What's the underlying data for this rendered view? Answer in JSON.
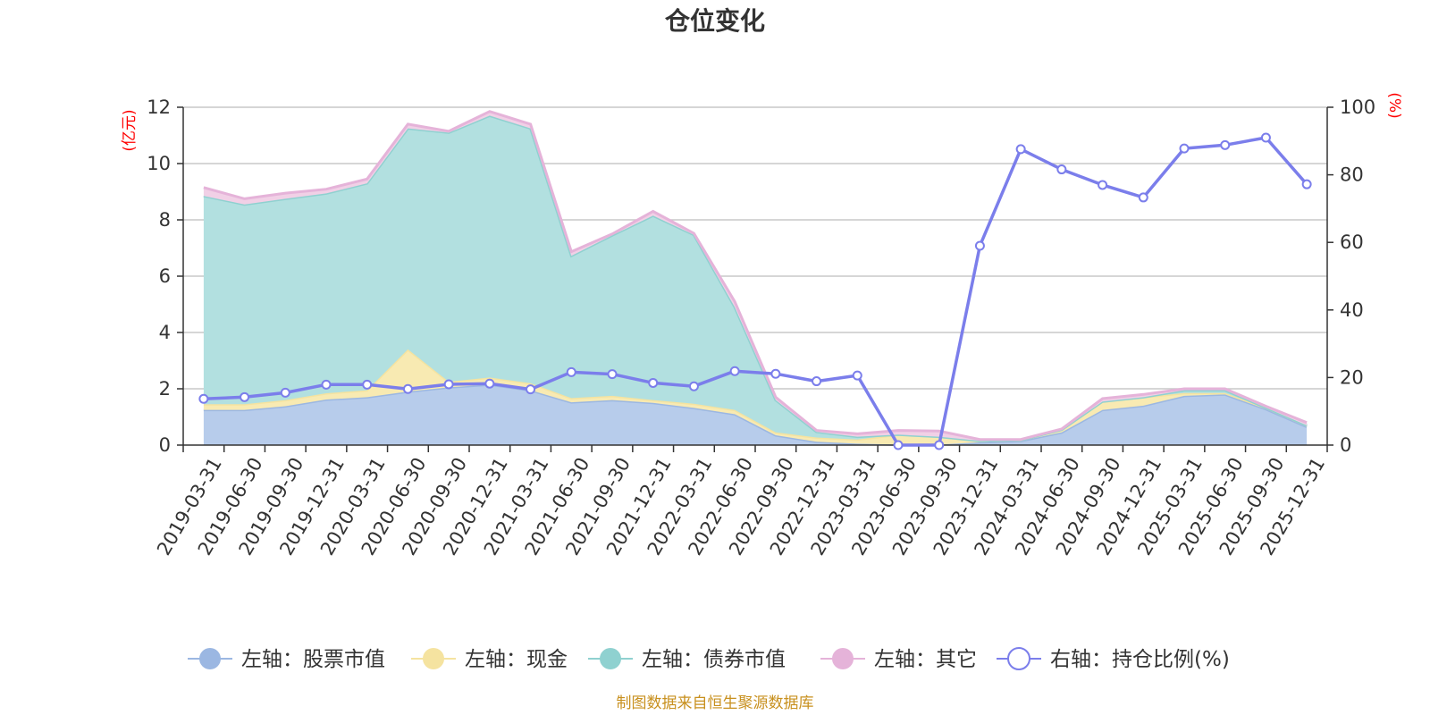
{
  "chart_data": {
    "type": "area",
    "title": "仓位变化",
    "source_note": "制图数据来自恒生聚源数据库",
    "left_axis": {
      "unit": "(亿元)",
      "ylim": [
        0,
        12
      ],
      "ticks": [
        0,
        2,
        4,
        6,
        8,
        10,
        12
      ]
    },
    "right_axis": {
      "unit": "(%)",
      "ylim": [
        0,
        100
      ],
      "ticks": [
        0,
        20,
        40,
        60,
        80,
        100
      ]
    },
    "categories": [
      "2019-03-31",
      "2019-06-30",
      "2019-09-30",
      "2019-12-31",
      "2020-03-31",
      "2020-06-30",
      "2020-09-30",
      "2020-12-31",
      "2021-03-31",
      "2021-06-30",
      "2021-09-30",
      "2021-12-31",
      "2022-03-31",
      "2022-06-30",
      "2022-09-30",
      "2022-12-31",
      "2023-03-31",
      "2023-06-30",
      "2023-09-30",
      "2023-12-31",
      "2024-03-31",
      "2024-06-30",
      "2024-09-30",
      "2024-12-31",
      "2025-03-31",
      "2025-06-30",
      "2025-09-30",
      "2025-12-31"
    ],
    "stacked_series": [
      {
        "name": "左轴：股票市值",
        "color": "#9bb7e2",
        "fill": "#b7cceb",
        "values": [
          1.25,
          1.25,
          1.38,
          1.62,
          1.7,
          1.9,
          2.05,
          2.15,
          1.95,
          1.52,
          1.6,
          1.5,
          1.32,
          1.1,
          0.35,
          0.12,
          0.05,
          0.02,
          0.02,
          0.1,
          0.15,
          0.45,
          1.25,
          1.4,
          1.75,
          1.8,
          1.28,
          0.65
        ]
      },
      {
        "name": "左轴：现金",
        "color": "#f5e3a0",
        "fill": "#f8eab2",
        "values": [
          0.2,
          0.2,
          0.22,
          0.22,
          0.25,
          1.5,
          0.2,
          0.25,
          0.25,
          0.15,
          0.15,
          0.1,
          0.15,
          0.15,
          0.1,
          0.15,
          0.15,
          0.35,
          0.28,
          0.05,
          0.03,
          0.1,
          0.3,
          0.3,
          0.1,
          0.05,
          0.05,
          0.05
        ]
      },
      {
        "name": "左轴：债券市值",
        "color": "#8fd1d0",
        "fill": "#b2e0e0",
        "values": [
          7.4,
          7.1,
          7.15,
          7.1,
          7.35,
          7.85,
          8.85,
          9.3,
          9.05,
          5.05,
          5.7,
          6.55,
          6.0,
          3.65,
          1.15,
          0.2,
          0.1,
          0.0,
          0.0,
          0.0,
          0.0,
          0.0,
          0.0,
          0.0,
          0.1,
          0.1,
          0.0,
          0.0
        ]
      },
      {
        "name": "左轴：其它",
        "color": "#e5b3d9",
        "fill": "#f1d0e6",
        "values": [
          0.3,
          0.2,
          0.2,
          0.15,
          0.15,
          0.15,
          0.05,
          0.15,
          0.15,
          0.15,
          0.05,
          0.15,
          0.05,
          0.2,
          0.1,
          0.05,
          0.1,
          0.15,
          0.2,
          0.05,
          0.02,
          0.02,
          0.1,
          0.1,
          0.05,
          0.05,
          0.05,
          0.1
        ]
      }
    ],
    "line_series": {
      "name": "右轴：持仓比例(%)",
      "color": "#7b7eeb",
      "axis": "right",
      "values": [
        13.7,
        14.2,
        15.5,
        17.9,
        17.9,
        16.6,
        18.0,
        18.2,
        16.5,
        21.6,
        21.0,
        18.4,
        17.4,
        21.9,
        21.1,
        18.9,
        20.6,
        0.0,
        0.0,
        59.0,
        87.6,
        81.6,
        77.0,
        73.3,
        87.8,
        88.8,
        91.0,
        77.2
      ]
    },
    "legend_position": "bottom-center",
    "grid": true
  }
}
